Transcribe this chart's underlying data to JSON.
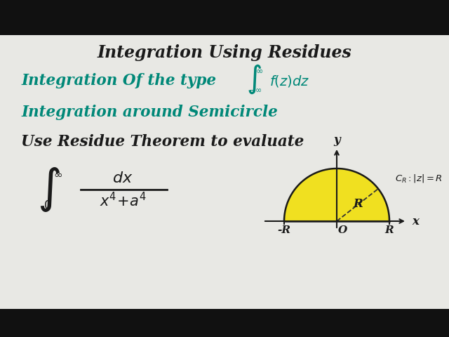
{
  "bg_outer": "#111111",
  "bg_inner": "#e8e8e4",
  "title_text": "Integration Using Residues",
  "title_color": "#1a1a1a",
  "line2_prefix": "Integration Of the type",
  "line2_color": "#008878",
  "line3_text": "Integration around Semicircle",
  "line3_color": "#008878",
  "line4_text": "Use Residue Theorem to evaluate",
  "line4_color": "#1a1a1a",
  "integral_color": "#1a1a1a",
  "semicircle_fill": "#f0e020",
  "semicircle_edge": "#1a1a1a",
  "axis_color": "#1a1a1a",
  "label_color": "#1a1a1a",
  "dashed_color": "#333333",
  "cr_label_color": "#1a1a1a",
  "fig_w": 6.4,
  "fig_h": 4.8,
  "dpi": 100
}
